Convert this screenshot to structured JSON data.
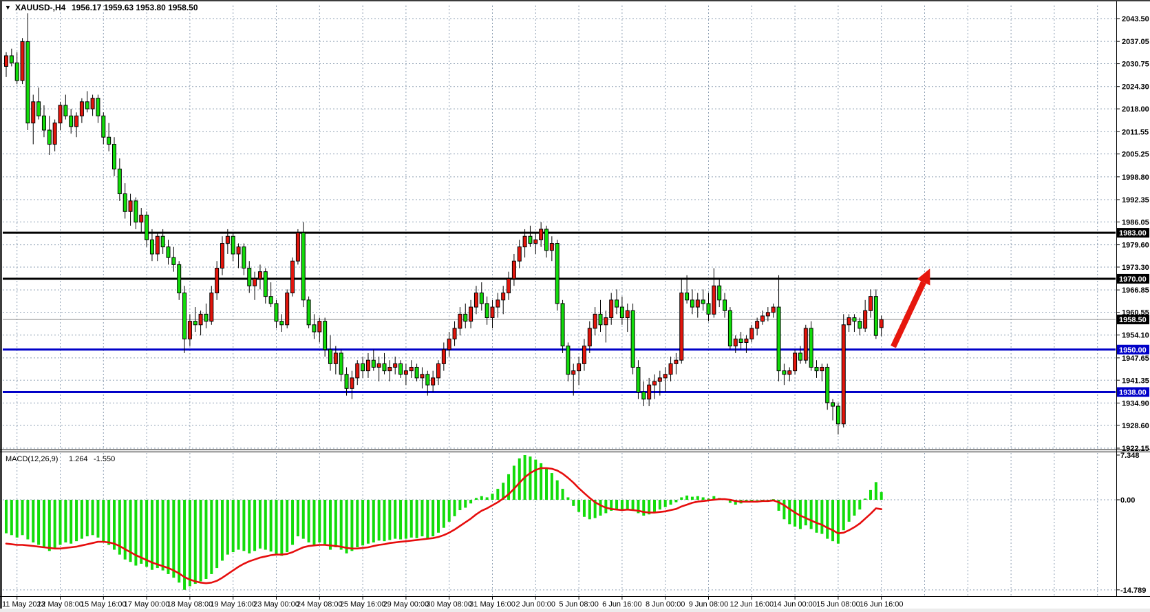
{
  "window": {
    "symbol_title": "XAUUSD-,H4",
    "ohlc_display": "1956.17 1959.63 1953.80 1958.50",
    "dropdown_glyph": "▼"
  },
  "colors": {
    "bull": "#e3150c",
    "bear": "#12dc0a",
    "wick": "#000000",
    "grid": "#8fa0b4",
    "hline_black": "#000000",
    "hline_blue": "#0000c8",
    "current_line": "#8a8a8a",
    "current_badge": "#000000",
    "macd_hist": "#12dc0a",
    "macd_signal": "#e60d0d",
    "arrow": "#e6170d",
    "axis_text": "#000000"
  },
  "chart_data": {
    "type": "candlestick",
    "symbol": "XAUUSD",
    "timeframe": "H4",
    "title": "XAUUSD-,H4  1956.17 1959.63 1953.80 1958.50",
    "y_ticks": [
      "2043.50",
      "2037.05",
      "2030.75",
      "2024.30",
      "2018.00",
      "2011.55",
      "2005.25",
      "1998.80",
      "1992.35",
      "1986.05",
      "1979.60",
      "1973.30",
      "1966.85",
      "1960.55",
      "1954.10",
      "1947.65",
      "1941.35",
      "1934.90",
      "1928.60",
      "1922.15"
    ],
    "x_label_indices": [
      2,
      10,
      18,
      26,
      34,
      42,
      50,
      58,
      66,
      74,
      82,
      90,
      98,
      106,
      114,
      122,
      130,
      138,
      146,
      154,
      162
    ],
    "x_labels": [
      "11 May 2023",
      "12 May 08:00",
      "15 May 16:00",
      "17 May 00:00",
      "18 May 08:00",
      "19 May 16:00",
      "23 May 00:00",
      "24 May 08:00",
      "25 May 16:00",
      "29 May 00:00",
      "30 May 08:00",
      "31 May 16:00",
      "2 Jun 00:00",
      "5 Jun 08:00",
      "6 Jun 16:00",
      "8 Jun 00:00",
      "9 Jun 08:00",
      "12 Jun 16:00",
      "14 Jun 00:00",
      "15 Jun 08:00",
      "16 Jun 16:00"
    ],
    "hlines": [
      {
        "price": 1983.0,
        "label": "1983.00",
        "color_key": "hline_black"
      },
      {
        "price": 1970.0,
        "label": "1970.00",
        "color_key": "hline_black"
      },
      {
        "price": 1950.0,
        "label": "1950.00",
        "color_key": "hline_blue"
      },
      {
        "price": 1938.0,
        "label": "1938.00",
        "color_key": "hline_blue"
      }
    ],
    "current_price": {
      "value": 1958.5,
      "label": "1958.50"
    },
    "candles": [
      [
        2030,
        2034,
        2027,
        2033
      ],
      [
        2033,
        2035,
        2030,
        2031
      ],
      [
        2031,
        2034,
        2025,
        2026
      ],
      [
        2026,
        2038,
        2025,
        2037
      ],
      [
        2037,
        2045,
        2012,
        2014
      ],
      [
        2014,
        2022,
        2008,
        2020
      ],
      [
        2020,
        2024,
        2015,
        2016
      ],
      [
        2016,
        2019,
        2010,
        2012
      ],
      [
        2012,
        2016,
        2005,
        2008
      ],
      [
        2008,
        2015,
        2006,
        2014
      ],
      [
        2014,
        2020,
        2012,
        2019
      ],
      [
        2019,
        2022,
        2015,
        2016
      ],
      [
        2016,
        2018,
        2011,
        2013
      ],
      [
        2013,
        2017,
        2010,
        2016
      ],
      [
        2016,
        2021,
        2014,
        2020
      ],
      [
        2020,
        2023,
        2017,
        2018
      ],
      [
        2018,
        2022,
        2016,
        2021
      ],
      [
        2021,
        2022,
        2014,
        2016
      ],
      [
        2016,
        2017,
        2008,
        2010
      ],
      [
        2010,
        2014,
        2006,
        2008
      ],
      [
        2008,
        2010,
        1999,
        2001
      ],
      [
        2001,
        2004,
        1992,
        1994
      ],
      [
        1994,
        1997,
        1987,
        1989
      ],
      [
        1989,
        1994,
        1985,
        1992
      ],
      [
        1992,
        1993,
        1984,
        1986
      ],
      [
        1986,
        1990,
        1983,
        1988
      ],
      [
        1988,
        1989,
        1979,
        1981
      ],
      [
        1981,
        1984,
        1975,
        1977
      ],
      [
        1977,
        1983,
        1975,
        1982
      ],
      [
        1982,
        1984,
        1977,
        1979
      ],
      [
        1979,
        1981,
        1974,
        1976
      ],
      [
        1976,
        1979,
        1972,
        1974
      ],
      [
        1974,
        1975,
        1964,
        1966
      ],
      [
        1966,
        1968,
        1949,
        1953
      ],
      [
        1953,
        1960,
        1951,
        1958
      ],
      [
        1958,
        1962,
        1955,
        1957
      ],
      [
        1957,
        1961,
        1954,
        1960
      ],
      [
        1960,
        1963,
        1956,
        1958
      ],
      [
        1958,
        1968,
        1957,
        1966
      ],
      [
        1966,
        1975,
        1964,
        1973
      ],
      [
        1973,
        1982,
        1971,
        1980
      ],
      [
        1980,
        1984,
        1977,
        1982
      ],
      [
        1982,
        1983,
        1975,
        1977
      ],
      [
        1977,
        1980,
        1973,
        1979
      ],
      [
        1979,
        1980,
        1971,
        1973
      ],
      [
        1973,
        1975,
        1966,
        1968
      ],
      [
        1968,
        1972,
        1964,
        1970
      ],
      [
        1970,
        1974,
        1967,
        1972
      ],
      [
        1972,
        1973,
        1963,
        1965
      ],
      [
        1965,
        1969,
        1962,
        1963
      ],
      [
        1963,
        1964,
        1956,
        1958
      ],
      [
        1958,
        1960,
        1955,
        1957
      ],
      [
        1957,
        1967,
        1956,
        1966
      ],
      [
        1966,
        1976,
        1965,
        1975
      ],
      [
        1975,
        1984,
        1974,
        1983
      ],
      [
        1983,
        1986,
        1962,
        1964
      ],
      [
        1964,
        1965,
        1956,
        1957
      ],
      [
        1957,
        1960,
        1953,
        1955
      ],
      [
        1955,
        1959,
        1952,
        1958
      ],
      [
        1958,
        1959,
        1948,
        1950
      ],
      [
        1950,
        1954,
        1944,
        1946
      ],
      [
        1946,
        1951,
        1943,
        1949
      ],
      [
        1949,
        1950,
        1941,
        1943
      ],
      [
        1943,
        1945,
        1937,
        1939
      ],
      [
        1939,
        1944,
        1936,
        1942
      ],
      [
        1942,
        1947,
        1940,
        1946
      ],
      [
        1946,
        1948,
        1942,
        1944
      ],
      [
        1944,
        1949,
        1942,
        1947
      ],
      [
        1947,
        1950,
        1944,
        1945
      ],
      [
        1945,
        1948,
        1941,
        1946
      ],
      [
        1946,
        1949,
        1943,
        1944
      ],
      [
        1944,
        1947,
        1941,
        1945
      ],
      [
        1945,
        1948,
        1943,
        1946
      ],
      [
        1946,
        1947,
        1942,
        1943
      ],
      [
        1943,
        1946,
        1940,
        1944
      ],
      [
        1944,
        1947,
        1942,
        1945
      ],
      [
        1945,
        1946,
        1941,
        1942
      ],
      [
        1942,
        1945,
        1939,
        1943
      ],
      [
        1943,
        1944,
        1937,
        1940
      ],
      [
        1940,
        1944,
        1938,
        1942
      ],
      [
        1942,
        1947,
        1940,
        1946
      ],
      [
        1946,
        1952,
        1944,
        1950
      ],
      [
        1950,
        1955,
        1948,
        1953
      ],
      [
        1953,
        1958,
        1951,
        1956
      ],
      [
        1956,
        1962,
        1954,
        1960
      ],
      [
        1960,
        1963,
        1956,
        1958
      ],
      [
        1958,
        1964,
        1956,
        1962
      ],
      [
        1962,
        1968,
        1960,
        1966
      ],
      [
        1966,
        1969,
        1961,
        1963
      ],
      [
        1963,
        1965,
        1957,
        1959
      ],
      [
        1959,
        1964,
        1956,
        1962
      ],
      [
        1962,
        1966,
        1959,
        1964
      ],
      [
        1964,
        1968,
        1960,
        1966
      ],
      [
        1966,
        1972,
        1964,
        1970
      ],
      [
        1970,
        1977,
        1968,
        1975
      ],
      [
        1975,
        1981,
        1973,
        1979
      ],
      [
        1979,
        1984,
        1976,
        1982
      ],
      [
        1982,
        1985,
        1979,
        1980
      ],
      [
        1980,
        1983,
        1977,
        1981
      ],
      [
        1981,
        1986,
        1979,
        1984
      ],
      [
        1984,
        1985,
        1976,
        1978
      ],
      [
        1978,
        1982,
        1975,
        1980
      ],
      [
        1980,
        1981,
        1961,
        1963
      ],
      [
        1963,
        1964,
        1949,
        1951
      ],
      [
        1951,
        1952,
        1941,
        1943
      ],
      [
        1943,
        1946,
        1937,
        1944
      ],
      [
        1944,
        1948,
        1940,
        1946
      ],
      [
        1946,
        1953,
        1944,
        1951
      ],
      [
        1951,
        1958,
        1949,
        1956
      ],
      [
        1956,
        1962,
        1954,
        1960
      ],
      [
        1960,
        1964,
        1955,
        1957
      ],
      [
        1957,
        1961,
        1952,
        1959
      ],
      [
        1959,
        1966,
        1957,
        1964
      ],
      [
        1964,
        1967,
        1960,
        1962
      ],
      [
        1962,
        1965,
        1957,
        1959
      ],
      [
        1959,
        1963,
        1955,
        1961
      ],
      [
        1961,
        1963,
        1943,
        1945
      ],
      [
        1945,
        1947,
        1936,
        1938
      ],
      [
        1938,
        1941,
        1934,
        1936
      ],
      [
        1936,
        1942,
        1934,
        1940
      ],
      [
        1940,
        1943,
        1936,
        1941
      ],
      [
        1941,
        1944,
        1937,
        1942
      ],
      [
        1942,
        1945,
        1938,
        1943
      ],
      [
        1943,
        1948,
        1941,
        1946
      ],
      [
        1946,
        1949,
        1943,
        1947
      ],
      [
        1947,
        1970,
        1946,
        1966
      ],
      [
        1966,
        1971,
        1963,
        1964
      ],
      [
        1964,
        1967,
        1960,
        1962
      ],
      [
        1962,
        1966,
        1959,
        1964
      ],
      [
        1964,
        1967,
        1961,
        1963
      ],
      [
        1963,
        1966,
        1958,
        1960
      ],
      [
        1960,
        1973,
        1959,
        1968
      ],
      [
        1968,
        1970,
        1962,
        1964
      ],
      [
        1964,
        1966,
        1959,
        1961
      ],
      [
        1961,
        1962,
        1950,
        1951
      ],
      [
        1951,
        1954,
        1949,
        1953
      ],
      [
        1953,
        1955,
        1950,
        1952
      ],
      [
        1952,
        1954,
        1949,
        1953
      ],
      [
        1953,
        1957,
        1952,
        1956
      ],
      [
        1956,
        1959,
        1954,
        1958
      ],
      [
        1958,
        1961,
        1957,
        1959.5
      ],
      [
        1959.5,
        1962,
        1958,
        1960.5
      ],
      [
        1960.5,
        1963,
        1959,
        1962
      ],
      [
        1962,
        1971,
        1941,
        1944
      ],
      [
        1944,
        1946,
        1940,
        1943
      ],
      [
        1943,
        1945,
        1941,
        1944
      ],
      [
        1944,
        1950,
        1943,
        1949
      ],
      [
        1949,
        1951,
        1946,
        1947
      ],
      [
        1947,
        1957,
        1946,
        1956
      ],
      [
        1956,
        1958,
        1944,
        1945
      ],
      [
        1945,
        1947,
        1942,
        1944
      ],
      [
        1944,
        1946,
        1941,
        1945
      ],
      [
        1945,
        1946,
        1933,
        1935
      ],
      [
        1935,
        1936,
        1930,
        1934
      ],
      [
        1934,
        1935,
        1926,
        1929
      ],
      [
        1929,
        1960,
        1928,
        1957
      ],
      [
        1957,
        1960,
        1955,
        1959
      ],
      [
        1959,
        1960,
        1955,
        1958
      ],
      [
        1958,
        1959,
        1954,
        1956
      ],
      [
        1956,
        1964,
        1955,
        1961
      ],
      [
        1961,
        1967,
        1959,
        1965
      ],
      [
        1965,
        1967,
        1953,
        1954
      ],
      [
        1956.2,
        1959.6,
        1953.8,
        1958.5
      ]
    ],
    "macd": {
      "name_label": "MACD(12,26,9)",
      "value_main": "1.264",
      "value_signal": "-1.550",
      "ticks": [
        {
          "v": 7.348,
          "label": "7.348",
          "gridline": false
        },
        {
          "v": 0.0,
          "label": "0.00",
          "gridline": true
        },
        {
          "v": -14.789,
          "label": "-14.789",
          "gridline": true
        }
      ],
      "histogram": [
        -5.5,
        -5.8,
        -6.2,
        -5.8,
        -6.5,
        -7.0,
        -7.4,
        -7.8,
        -8.4,
        -8.0,
        -7.4,
        -7.0,
        -7.2,
        -6.8,
        -6.4,
        -6.0,
        -5.8,
        -6.2,
        -6.8,
        -7.4,
        -8.2,
        -9.0,
        -9.8,
        -10.2,
        -10.8,
        -10.5,
        -11.0,
        -11.5,
        -11.2,
        -11.6,
        -12.2,
        -12.8,
        -13.6,
        -14.789,
        -14.2,
        -13.8,
        -13.4,
        -13.0,
        -12.2,
        -11.2,
        -10.0,
        -9.0,
        -8.6,
        -8.2,
        -8.4,
        -8.8,
        -8.4,
        -8.0,
        -8.2,
        -8.5,
        -9.0,
        -9.2,
        -8.6,
        -7.4,
        -6.0,
        -6.4,
        -7.0,
        -7.4,
        -7.0,
        -7.5,
        -8.2,
        -7.8,
        -8.2,
        -8.8,
        -8.4,
        -7.8,
        -7.5,
        -7.2,
        -7.0,
        -6.7,
        -6.8,
        -6.6,
        -6.4,
        -6.5,
        -6.4,
        -6.2,
        -6.3,
        -6.0,
        -6.3,
        -6.0,
        -5.4,
        -4.6,
        -3.6,
        -2.7,
        -1.7,
        -1.3,
        -0.6,
        0.3,
        0.6,
        0.4,
        1.0,
        1.8,
        2.8,
        4.2,
        5.6,
        6.8,
        7.348,
        7.1,
        6.6,
        6.0,
        5.2,
        4.4,
        3.2,
        1.8,
        0.4,
        -1.0,
        -2.0,
        -2.8,
        -3.2,
        -3.0,
        -2.6,
        -2.2,
        -1.8,
        -1.6,
        -1.8,
        -1.5,
        -1.8,
        -2.2,
        -2.6,
        -2.4,
        -2.0,
        -1.6,
        -1.2,
        -0.8,
        -0.4,
        0.4,
        0.7,
        0.5,
        0.6,
        0.4,
        0.2,
        0.6,
        0.3,
        0.0,
        -0.5,
        -0.8,
        -0.6,
        -0.4,
        -0.3,
        -0.1,
        -0.2,
        -0.3,
        0.1,
        -1.8,
        -3.2,
        -4.0,
        -4.4,
        -4.8,
        -4.2,
        -4.8,
        -5.4,
        -5.6,
        -6.4,
        -6.8,
        -7.2,
        -5.0,
        -3.6,
        -2.6,
        -1.6,
        0.2,
        1.6,
        2.9,
        1.264
      ],
      "signal": [
        -7.2,
        -7.3,
        -7.4,
        -7.4,
        -7.5,
        -7.6,
        -7.7,
        -7.8,
        -7.9,
        -8.0,
        -8.0,
        -7.9,
        -7.8,
        -7.7,
        -7.5,
        -7.3,
        -7.1,
        -6.9,
        -6.9,
        -7.0,
        -7.2,
        -7.6,
        -8.1,
        -8.6,
        -9.1,
        -9.5,
        -9.9,
        -10.3,
        -10.6,
        -10.9,
        -11.2,
        -11.6,
        -12.1,
        -12.7,
        -13.1,
        -13.4,
        -13.6,
        -13.7,
        -13.6,
        -13.3,
        -12.8,
        -12.2,
        -11.6,
        -11.0,
        -10.5,
        -10.1,
        -9.8,
        -9.5,
        -9.3,
        -9.1,
        -9.0,
        -9.0,
        -8.9,
        -8.6,
        -8.2,
        -7.8,
        -7.6,
        -7.5,
        -7.4,
        -7.4,
        -7.5,
        -7.6,
        -7.7,
        -7.9,
        -8.0,
        -8.0,
        -7.9,
        -7.8,
        -7.6,
        -7.4,
        -7.3,
        -7.1,
        -7.0,
        -6.9,
        -6.8,
        -6.7,
        -6.6,
        -6.5,
        -6.4,
        -6.3,
        -6.1,
        -5.8,
        -5.4,
        -4.9,
        -4.3,
        -3.7,
        -3.1,
        -2.4,
        -1.8,
        -1.4,
        -0.9,
        -0.4,
        0.2,
        0.9,
        1.8,
        2.8,
        3.7,
        4.4,
        4.9,
        5.2,
        5.2,
        5.1,
        4.8,
        4.3,
        3.6,
        2.8,
        1.9,
        1.1,
        0.3,
        -0.4,
        -0.9,
        -1.3,
        -1.5,
        -1.6,
        -1.7,
        -1.6,
        -1.7,
        -1.8,
        -2.0,
        -2.1,
        -2.1,
        -2.0,
        -1.9,
        -1.7,
        -1.5,
        -1.1,
        -0.8,
        -0.5,
        -0.3,
        -0.2,
        -0.1,
        0.0,
        0.1,
        0.1,
        0.0,
        -0.2,
        -0.3,
        -0.3,
        -0.3,
        -0.3,
        -0.2,
        -0.2,
        -0.1,
        -0.4,
        -0.9,
        -1.5,
        -2.1,
        -2.6,
        -3.0,
        -3.4,
        -3.8,
        -4.1,
        -4.6,
        -5.0,
        -5.5,
        -5.4,
        -5.0,
        -4.5,
        -3.9,
        -3.1,
        -2.3,
        -1.4,
        -1.55
      ]
    },
    "arrow": {
      "bar_from": 164.2,
      "price_from": 1950.8,
      "bar_to": 169.8,
      "price_to": 1969.0
    }
  }
}
